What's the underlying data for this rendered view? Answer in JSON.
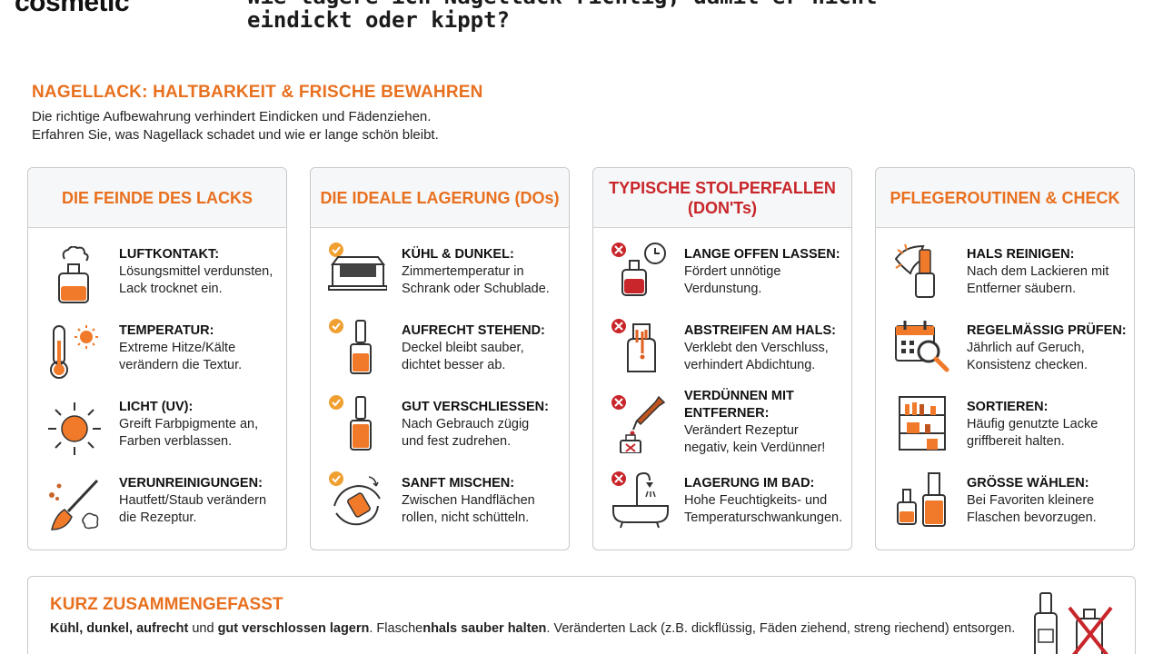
{
  "brand": {
    "logo_text": "cosmetic"
  },
  "page": {
    "title_line1": "Wie lagere ich Nagellack richtig, damit er nicht",
    "title_line2": "eindickt oder kippt?"
  },
  "infographic": {
    "title": "NAGELLACK: HALTBARKEIT & FRISCHE BEWAHREN",
    "intro_1": "Die richtige Aufbewahrung verhindert Eindicken und Fädenziehen.",
    "intro_2": "Erfahren Sie, was Nagellack schadet und wie er lange schön bleibt."
  },
  "colors": {
    "accent": "#e8701f",
    "danger": "#c8262a",
    "check": "#f0a030"
  },
  "columns": [
    {
      "heading": "DIE FEINDE DES LACKS",
      "items": [
        {
          "icon": "open-bottle-icon",
          "title": "LUFTKONTAKT:",
          "text1": "Lösungsmittel verdunsten,",
          "text2": "Lack trocknet ein."
        },
        {
          "icon": "thermometer-icon",
          "title": "TEMPERATUR:",
          "text1": "Extreme Hitze/Kälte",
          "text2": "verändern die Textur."
        },
        {
          "icon": "sun-icon",
          "title": "LICHT (UV):",
          "text1": "Greift Farbpigmente an,",
          "text2": "Farben verblassen."
        },
        {
          "icon": "brush-dirt-icon",
          "title": "VERUNREINIGUNGEN:",
          "text1": "Hautfett/Staub verändern",
          "text2": "die Rezeptur."
        }
      ]
    },
    {
      "heading": "DIE IDEALE LAGERUNG (DOs)",
      "items": [
        {
          "icon": "drawer-icon",
          "title": "KÜHL & DUNKEL:",
          "text1": "Zimmertemperatur in",
          "text2": "Schrank oder Schublade."
        },
        {
          "icon": "upright-bottle-icon",
          "title": "AUFRECHT STEHEND:",
          "text1": "Deckel bleibt sauber,",
          "text2": "dichtet besser ab."
        },
        {
          "icon": "closed-bottle-icon",
          "title": "GUT VERSCHLIESSEN:",
          "text1": "Nach Gebrauch zügig",
          "text2": "und fest zudrehen."
        },
        {
          "icon": "rolling-hands-icon",
          "title": "SANFT MISCHEN:",
          "text1": "Zwischen Handflächen",
          "text2": "rollen, nicht schütteln."
        }
      ]
    },
    {
      "heading": "TYPISCHE STOLPERFALLEN",
      "heading2": "(DON'Ts)",
      "items": [
        {
          "icon": "bottle-clock-icon",
          "title": "LANGE OFFEN LASSEN:",
          "text1": "Fördert unnötige",
          "text2": "Verdunstung."
        },
        {
          "icon": "drip-neck-icon",
          "title": "ABSTREIFEN AM HALS:",
          "text1": "Verklebt den Verschluss,",
          "text2": "verhindert Abdichtung."
        },
        {
          "icon": "dropper-icon",
          "title": "VERDÜNNEN MIT",
          "title2": "ENTFERNER:",
          "text1": "Verändert Rezeptur",
          "text2": "negativ, kein Verdünner!"
        },
        {
          "icon": "bathtub-icon",
          "title": "LAGERUNG IM BAD:",
          "text1": "Hohe Feuchtigkeits- und",
          "text2": "Temperaturschwankungen."
        }
      ]
    },
    {
      "heading": "PFLEGEROUTINEN & CHECK",
      "items": [
        {
          "icon": "cleaning-neck-icon",
          "title": "HALS REINIGEN:",
          "text1": "Nach dem Lackieren mit",
          "text2": "Entferner säubern."
        },
        {
          "icon": "calendar-search-icon",
          "title": "REGELMÄSSIG PRÜFEN:",
          "text1": "Jährlich auf Geruch,",
          "text2": "Konsistenz checken."
        },
        {
          "icon": "shelf-icon",
          "title": "SORTIEREN:",
          "text1": "Häufig genutzte Lacke",
          "text2": "griffbereit halten."
        },
        {
          "icon": "bottle-sizes-icon",
          "title": "GRÖSSE WÄHLEN:",
          "text1": "Bei Favoriten kleinere",
          "text2": "Flaschen bevorzugen."
        }
      ]
    }
  ],
  "summary": {
    "title": "KURZ ZUSAMMENGEFASST",
    "b1": "Kühl,",
    "b2": "dunkel,",
    "b3": "aufrecht",
    "t1": "und",
    "b4": "gut verschlossen lagern",
    "t2": ". Flasche",
    "b5": "nhals sauber halten",
    "t3": ". Veränderten Lack (z.B. dickflüssig, Fäden ziehend, streng riechend) entsorgen."
  }
}
